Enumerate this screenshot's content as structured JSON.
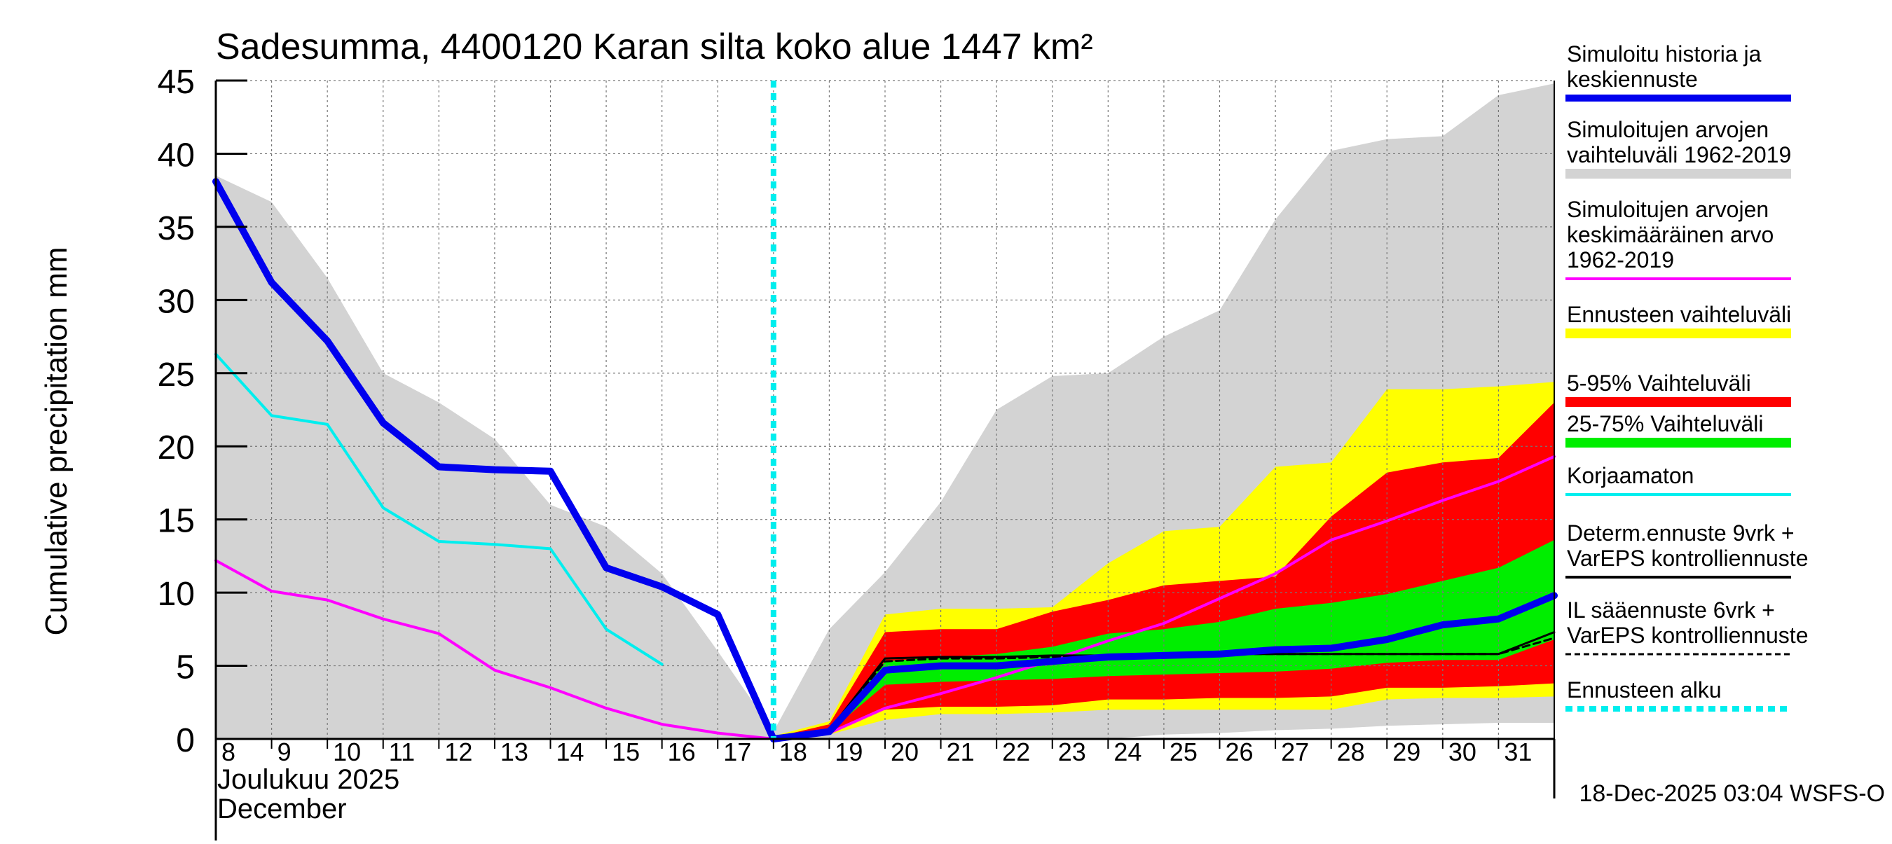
{
  "chart_data": {
    "type": "area",
    "title": "Sadesumma, 4400120 Karan silta koko alue 1447 km²",
    "ylabel": "Cumulative precipitation   mm",
    "xlabel_line1": "Joulukuu  2025",
    "xlabel_line2": "December",
    "footer": "18-Dec-2025 03:04 WSFS-O",
    "ylim": [
      0,
      45
    ],
    "xlim": [
      8,
      32
    ],
    "y_ticks": [
      0,
      5,
      10,
      15,
      20,
      25,
      30,
      35,
      40,
      45
    ],
    "y_tick_labels": [
      "0",
      "5",
      "10",
      "15",
      "20",
      "25",
      "30",
      "35",
      "40",
      "45"
    ],
    "x_ticks": [
      8,
      9,
      10,
      11,
      12,
      13,
      14,
      15,
      16,
      17,
      18,
      19,
      20,
      21,
      22,
      23,
      24,
      25,
      26,
      27,
      28,
      29,
      30,
      31
    ],
    "x_tick_labels": [
      "8",
      "9",
      "10",
      "11",
      "12",
      "13",
      "14",
      "15",
      "16",
      "17",
      "18",
      "19",
      "20",
      "21",
      "22",
      "23",
      "24",
      "25",
      "26",
      "27",
      "28",
      "29",
      "30",
      "31"
    ],
    "forecast_start": 18,
    "colors": {
      "history": "#0000ee",
      "sim_range": "#d3d3d3",
      "sim_mean": "#ff00ff",
      "forecast_range": "#ffff00",
      "p5_95": "#ff0000",
      "p25_75": "#00ee00",
      "uncorrected": "#00eeee",
      "determ": "#000000",
      "il": "#000000",
      "forecast_start": "#00eeee"
    },
    "series": {
      "sim_range": {
        "name": "Simuloitujen arvojen vaihteluväli 1962-2019",
        "upper": [
          [
            8,
            38.5
          ],
          [
            9,
            36.7
          ],
          [
            10,
            31.5
          ],
          [
            11,
            25
          ],
          [
            12,
            23
          ],
          [
            13,
            20.5
          ],
          [
            14,
            16
          ],
          [
            15,
            14.5
          ],
          [
            16,
            11.3
          ],
          [
            17,
            6
          ],
          [
            18,
            0.5
          ],
          [
            19,
            7.5
          ],
          [
            20,
            11.4
          ],
          [
            21,
            16.2
          ],
          [
            22,
            22.5
          ],
          [
            23,
            24.8
          ],
          [
            24,
            25
          ],
          [
            25,
            27.5
          ],
          [
            26,
            29.3
          ],
          [
            27,
            35.5
          ],
          [
            28,
            40.2
          ],
          [
            29,
            41
          ],
          [
            30,
            41.2
          ],
          [
            31,
            44
          ],
          [
            32,
            44.8
          ]
        ],
        "lower": [
          [
            8,
            0
          ],
          [
            18,
            0
          ],
          [
            24,
            0
          ],
          [
            25,
            0.3
          ],
          [
            26,
            0.4
          ],
          [
            27,
            0.6
          ],
          [
            28,
            0.7
          ],
          [
            29,
            0.9
          ],
          [
            30,
            1.0
          ],
          [
            31,
            1.1
          ],
          [
            32,
            1.1
          ]
        ]
      },
      "forecast_range": {
        "name": "Ennusteen vaihteluväli",
        "upper": [
          [
            18,
            0.2
          ],
          [
            19,
            1.2
          ],
          [
            20,
            8.5
          ],
          [
            21,
            8.9
          ],
          [
            22,
            8.9
          ],
          [
            23,
            9.0
          ],
          [
            24,
            12
          ],
          [
            25,
            14.2
          ],
          [
            26,
            14.5
          ],
          [
            27,
            18.6
          ],
          [
            28,
            18.9
          ],
          [
            29,
            23.9
          ],
          [
            30,
            23.9
          ],
          [
            31,
            24.1
          ],
          [
            32,
            24.4
          ]
        ],
        "lower": [
          [
            18,
            0
          ],
          [
            19,
            0.3
          ],
          [
            20,
            1.3
          ],
          [
            21,
            1.7
          ],
          [
            22,
            1.7
          ],
          [
            23,
            1.8
          ],
          [
            24,
            2.0
          ],
          [
            25,
            2.0
          ],
          [
            26,
            2.0
          ],
          [
            27,
            2.0
          ],
          [
            28,
            2.0
          ],
          [
            29,
            2.7
          ],
          [
            30,
            2.8
          ],
          [
            31,
            2.8
          ],
          [
            32,
            2.9
          ]
        ]
      },
      "p5_95": {
        "name": "5-95% Vaihteluväli",
        "upper": [
          [
            18,
            0.1
          ],
          [
            19,
            1.0
          ],
          [
            20,
            7.3
          ],
          [
            21,
            7.5
          ],
          [
            22,
            7.5
          ],
          [
            23,
            8.7
          ],
          [
            24,
            9.5
          ],
          [
            25,
            10.5
          ],
          [
            26,
            10.8
          ],
          [
            27,
            11.1
          ],
          [
            28,
            15.2
          ],
          [
            29,
            18.2
          ],
          [
            30,
            18.9
          ],
          [
            31,
            19.2
          ],
          [
            32,
            23
          ]
        ],
        "lower": [
          [
            18,
            0
          ],
          [
            19,
            0.4
          ],
          [
            20,
            2
          ],
          [
            21,
            2.2
          ],
          [
            22,
            2.2
          ],
          [
            23,
            2.3
          ],
          [
            24,
            2.7
          ],
          [
            25,
            2.7
          ],
          [
            26,
            2.8
          ],
          [
            27,
            2.8
          ],
          [
            28,
            2.9
          ],
          [
            29,
            3.5
          ],
          [
            30,
            3.5
          ],
          [
            31,
            3.6
          ],
          [
            32,
            3.8
          ]
        ]
      },
      "p25_75": {
        "name": "25-75% Vaihteluväli",
        "upper": [
          [
            18,
            0.1
          ],
          [
            19,
            0.7
          ],
          [
            20,
            5.3
          ],
          [
            21,
            5.6
          ],
          [
            22,
            5.8
          ],
          [
            23,
            6.3
          ],
          [
            24,
            7.2
          ],
          [
            25,
            7.5
          ],
          [
            26,
            8.0
          ],
          [
            27,
            8.9
          ],
          [
            28,
            9.3
          ],
          [
            29,
            9.9
          ],
          [
            30,
            10.8
          ],
          [
            31,
            11.7
          ],
          [
            32,
            13.6
          ]
        ],
        "lower": [
          [
            18,
            0
          ],
          [
            19,
            0.5
          ],
          [
            20,
            3.7
          ],
          [
            21,
            3.9
          ],
          [
            22,
            4.0
          ],
          [
            23,
            4.1
          ],
          [
            24,
            4.3
          ],
          [
            25,
            4.4
          ],
          [
            26,
            4.5
          ],
          [
            27,
            4.6
          ],
          [
            28,
            4.8
          ],
          [
            29,
            5.2
          ],
          [
            30,
            5.4
          ],
          [
            31,
            5.4
          ],
          [
            32,
            6.8
          ]
        ]
      },
      "sim_mean": {
        "name": "Simuloitujen arvojen keskimääräinen arvo 1962-2019",
        "values": [
          [
            8,
            12.2
          ],
          [
            9,
            10.1
          ],
          [
            10,
            9.5
          ],
          [
            11,
            8.2
          ],
          [
            12,
            7.2
          ],
          [
            13,
            4.7
          ],
          [
            14,
            3.5
          ],
          [
            15,
            2.1
          ],
          [
            16,
            1.0
          ],
          [
            17,
            0.4
          ],
          [
            18,
            0
          ],
          [
            19,
            0.4
          ],
          [
            20,
            2.1
          ],
          [
            21,
            3.1
          ],
          [
            22,
            4.2
          ],
          [
            23,
            5.4
          ],
          [
            24,
            6.7
          ],
          [
            25,
            7.9
          ],
          [
            26,
            9.6
          ],
          [
            27,
            11.3
          ],
          [
            28,
            13.6
          ],
          [
            29,
            14.9
          ],
          [
            30,
            16.3
          ],
          [
            31,
            17.6
          ],
          [
            32,
            19.3
          ]
        ]
      },
      "uncorrected": {
        "name": "Korjaamaton",
        "values": [
          [
            8,
            26.3
          ],
          [
            9,
            22.1
          ],
          [
            10,
            21.5
          ],
          [
            11,
            15.8
          ],
          [
            12,
            13.5
          ],
          [
            13,
            13.3
          ],
          [
            14,
            13
          ],
          [
            15,
            7.5
          ],
          [
            16,
            5.1
          ]
        ]
      },
      "determ": {
        "name": "Determ.ennuste 9vrk + VarEPS kontrolliennuste",
        "values": [
          [
            18,
            0
          ],
          [
            19,
            0.6
          ],
          [
            20,
            5.5
          ],
          [
            21,
            5.6
          ],
          [
            22,
            5.6
          ],
          [
            23,
            5.7
          ],
          [
            24,
            5.7
          ],
          [
            25,
            5.8
          ],
          [
            26,
            5.8
          ],
          [
            27,
            5.8
          ],
          [
            28,
            5.8
          ],
          [
            29,
            5.8
          ],
          [
            30,
            5.8
          ],
          [
            31,
            5.8
          ],
          [
            32,
            7.3
          ]
        ]
      },
      "il": {
        "name": "IL sääennuste 6vrk + VarEPS kontrolliennuste",
        "values": [
          [
            18,
            0
          ],
          [
            19,
            0.5
          ],
          [
            20,
            5.3
          ],
          [
            21,
            5.5
          ],
          [
            22,
            5.5
          ],
          [
            23,
            5.6
          ],
          [
            24,
            5.7
          ],
          [
            25,
            5.8
          ],
          [
            26,
            5.8
          ],
          [
            27,
            5.8
          ],
          [
            28,
            5.8
          ],
          [
            29,
            5.8
          ],
          [
            30,
            5.8
          ],
          [
            31,
            5.8
          ],
          [
            32,
            6.9
          ]
        ]
      },
      "history": {
        "name": "Simuloitu historia ja keskiennuste",
        "values": [
          [
            8,
            38.1
          ],
          [
            9,
            31.2
          ],
          [
            10,
            27.2
          ],
          [
            11,
            21.6
          ],
          [
            12,
            18.6
          ],
          [
            13,
            18.4
          ],
          [
            14,
            18.3
          ],
          [
            15,
            11.7
          ],
          [
            16,
            10.4
          ],
          [
            17,
            8.5
          ],
          [
            18,
            0
          ],
          [
            19,
            0.5
          ],
          [
            20,
            4.7
          ],
          [
            21,
            5.0
          ],
          [
            22,
            5.0
          ],
          [
            23,
            5.3
          ],
          [
            24,
            5.6
          ],
          [
            25,
            5.7
          ],
          [
            26,
            5.8
          ],
          [
            27,
            6.1
          ],
          [
            28,
            6.2
          ],
          [
            29,
            6.8
          ],
          [
            30,
            7.8
          ],
          [
            31,
            8.2
          ],
          [
            32,
            9.8
          ]
        ]
      }
    },
    "legend": [
      {
        "key": "history",
        "lines": [
          "Simuloitu historia ja",
          "keskiennuste"
        ],
        "style": "thick"
      },
      {
        "key": "sim_range",
        "lines": [
          "Simuloitujen arvojen",
          "vaihteluväli 1962-2019"
        ],
        "style": "band"
      },
      {
        "key": "sim_mean",
        "lines": [
          "Simuloitujen arvojen",
          "keskimääräinen arvo",
          "   1962-2019"
        ],
        "style": "line"
      },
      {
        "key": "forecast_range",
        "lines": [
          "Ennusteen vaihteluväli"
        ],
        "style": "band"
      },
      {
        "key": "p5_95",
        "lines": [
          "5-95% Vaihteluväli"
        ],
        "style": "band"
      },
      {
        "key": "p25_75",
        "lines": [
          "25-75% Vaihteluväli"
        ],
        "style": "band"
      },
      {
        "key": "uncorrected",
        "lines": [
          "Korjaamaton"
        ],
        "style": "line"
      },
      {
        "key": "determ",
        "lines": [
          "Determ.ennuste 9vrk +",
          "VarEPS kontrolliennuste"
        ],
        "style": "line"
      },
      {
        "key": "il",
        "lines": [
          "IL sääennuste 6vrk  +",
          "  VarEPS kontrolliennuste"
        ],
        "style": "dashed"
      },
      {
        "key": "forecast_start",
        "lines": [
          "Ennusteen alku"
        ],
        "style": "dotted"
      }
    ]
  }
}
